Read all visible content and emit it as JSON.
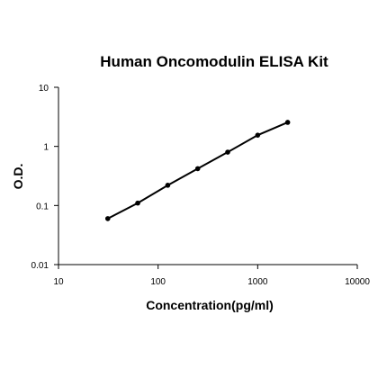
{
  "chart_data": {
    "type": "scatter",
    "title": "Human Oncomodulin ELISA Kit",
    "x_label": "Concentration(pg/ml)",
    "y_label": "O.D.",
    "x": [
      31.25,
      62.5,
      125,
      250,
      500,
      1000,
      2000
    ],
    "values": [
      0.06,
      0.11,
      0.22,
      0.42,
      0.8,
      1.55,
      2.55
    ],
    "color": "#000000",
    "line": true,
    "log_x": true,
    "log_y": true,
    "xlim": [
      10,
      10000
    ],
    "xticks": [
      10,
      100,
      1000,
      10000
    ],
    "ylim": [
      0.01,
      10
    ],
    "yticks": [
      10,
      1,
      0.1,
      0.01
    ],
    "grid": false
  }
}
